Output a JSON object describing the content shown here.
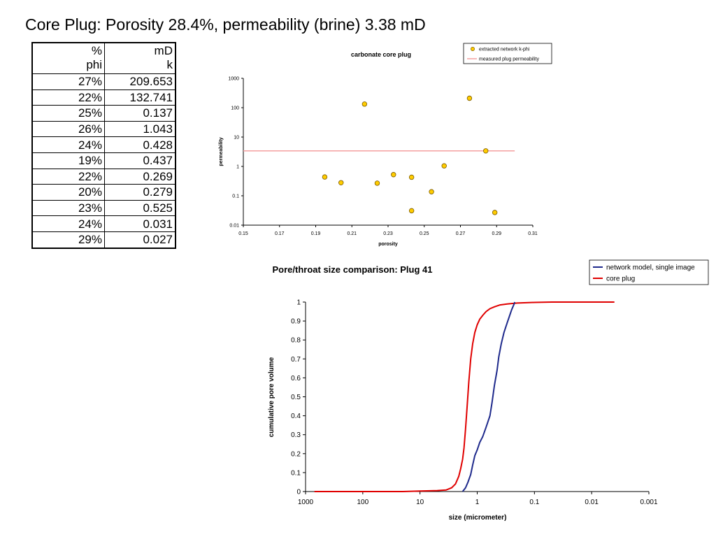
{
  "page": {
    "title": "Core Plug: Porosity 28.4%, permeability (brine) 3.38 mD"
  },
  "table": {
    "headers": [
      {
        "unit": "%",
        "name": "phi"
      },
      {
        "unit": "mD",
        "name": "k"
      }
    ],
    "rows": [
      [
        "27%",
        "209.653"
      ],
      [
        "22%",
        "132.741"
      ],
      [
        "25%",
        "0.137"
      ],
      [
        "26%",
        "1.043"
      ],
      [
        "24%",
        "0.428"
      ],
      [
        "19%",
        "0.437"
      ],
      [
        "22%",
        "0.269"
      ],
      [
        "20%",
        "0.279"
      ],
      [
        "23%",
        "0.525"
      ],
      [
        "24%",
        "0.031"
      ],
      [
        "29%",
        "0.027"
      ]
    ]
  },
  "chart_data": [
    {
      "type": "scatter",
      "title": "carbonate core plug",
      "xlabel": "porosity",
      "ylabel": "permeability",
      "xlim": [
        0.15,
        0.31
      ],
      "ylim": [
        0.01,
        1000
      ],
      "yscale": "log",
      "xticks": [
        "0.15",
        "0.17",
        "0.19",
        "0.21",
        "0.23",
        "0.25",
        "0.27",
        "0.29",
        "0.31"
      ],
      "yticks": [
        "0.01",
        "0.1",
        "1",
        "10",
        "100",
        "1000"
      ],
      "grid": false,
      "legend_position": "top-right",
      "series": [
        {
          "name": "extracted network k-phi",
          "color": "#FFCC00",
          "points": [
            [
              0.195,
              0.437
            ],
            [
              0.204,
              0.279
            ],
            [
              0.217,
              132.741
            ],
            [
              0.224,
              0.269
            ],
            [
              0.233,
              0.525
            ],
            [
              0.243,
              0.428
            ],
            [
              0.243,
              0.031
            ],
            [
              0.254,
              0.137
            ],
            [
              0.261,
              1.043
            ],
            [
              0.275,
              209.653
            ],
            [
              0.284,
              3.38
            ],
            [
              0.289,
              0.027
            ]
          ]
        },
        {
          "name": "measured plug permeability",
          "color": "#F4A0A0",
          "line": {
            "x": [
              0.15,
              0.3
            ],
            "y": 3.38
          }
        }
      ]
    },
    {
      "type": "line",
      "title": "Pore/throat size comparison: Plug 41",
      "xlabel": "size (micrometer)",
      "ylabel": "cumulative pore volume",
      "xscale": "log",
      "xreversed": true,
      "xlim": [
        1000,
        0.001
      ],
      "ylim": [
        0,
        1
      ],
      "xticks": [
        "1000",
        "100",
        "10",
        "1",
        "0.1",
        "0.01",
        "0.001"
      ],
      "yticks": [
        "0",
        "0.1",
        "0.2",
        "0.3",
        "0.4",
        "0.5",
        "0.6",
        "0.7",
        "0.8",
        "0.9",
        "1"
      ],
      "grid": false,
      "legend_position": "top-right",
      "series": [
        {
          "name": "network model, single image",
          "color": "#1F2A8C",
          "x": [
            1.8,
            1.6,
            1.45,
            1.3,
            1.2,
            1.1,
            1.0,
            0.9,
            0.8,
            0.7,
            0.6,
            0.55,
            0.5,
            0.45,
            0.42,
            0.38,
            0.34,
            0.3,
            0.27,
            0.25,
            0.23,
            0.22
          ],
          "y": [
            0.0,
            0.02,
            0.05,
            0.09,
            0.14,
            0.19,
            0.22,
            0.26,
            0.29,
            0.34,
            0.4,
            0.47,
            0.56,
            0.64,
            0.71,
            0.78,
            0.84,
            0.89,
            0.93,
            0.96,
            0.985,
            1.0
          ]
        },
        {
          "name": "core plug",
          "color": "#E00000",
          "x": [
            700,
            100,
            20,
            10,
            5,
            3.5,
            2.8,
            2.4,
            2.1,
            1.95,
            1.8,
            1.7,
            1.6,
            1.5,
            1.4,
            1.3,
            1.2,
            1.1,
            1.0,
            0.9,
            0.8,
            0.7,
            0.6,
            0.5,
            0.4,
            0.3,
            0.2,
            0.1,
            0.05,
            0.01,
            0.004
          ],
          "y": [
            0.0,
            0.0,
            0.0,
            0.003,
            0.005,
            0.008,
            0.02,
            0.04,
            0.08,
            0.12,
            0.17,
            0.23,
            0.33,
            0.45,
            0.58,
            0.7,
            0.78,
            0.84,
            0.88,
            0.91,
            0.93,
            0.95,
            0.965,
            0.975,
            0.985,
            0.99,
            0.995,
            0.998,
            1.0,
            1.0,
            1.0
          ]
        }
      ]
    }
  ]
}
